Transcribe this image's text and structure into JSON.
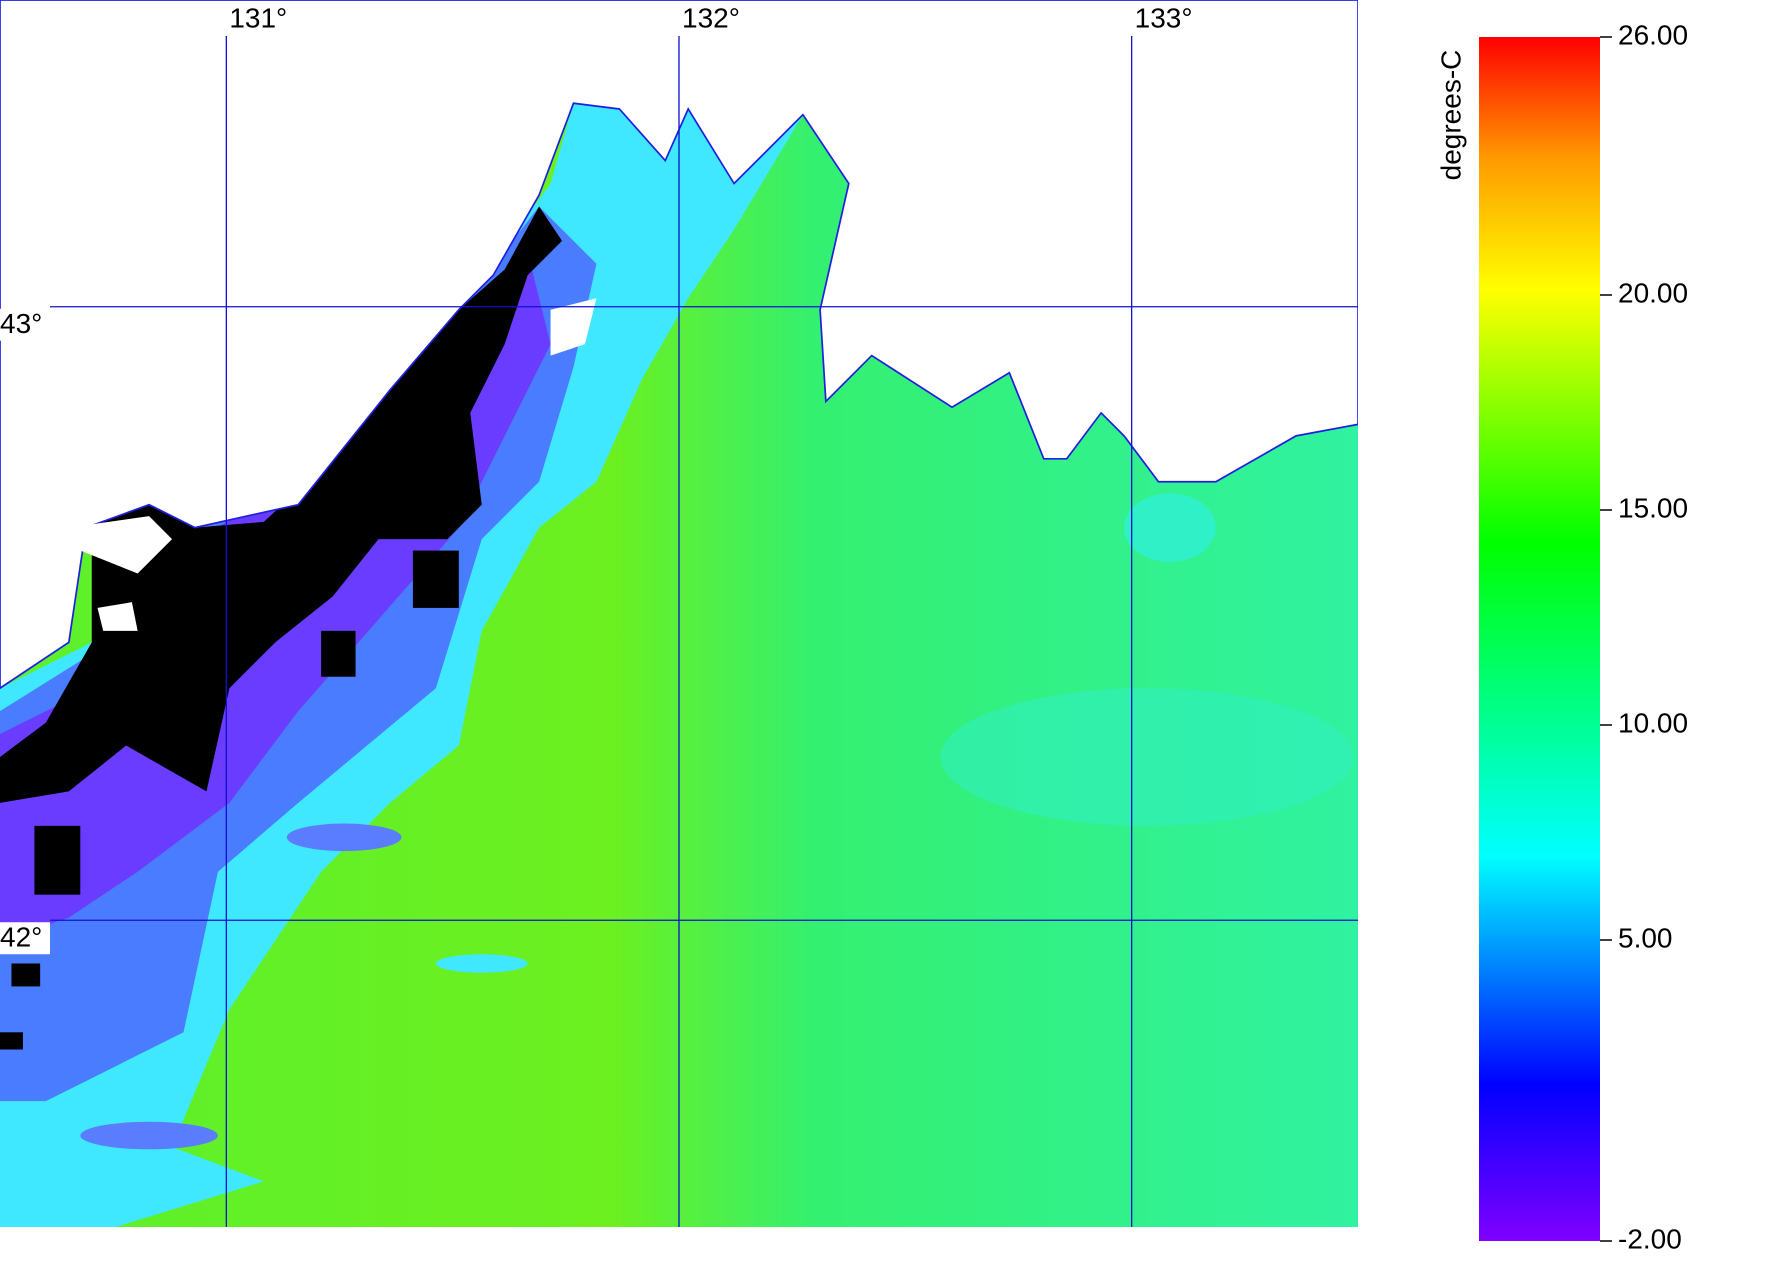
{
  "map": {
    "lonlim": [
      130.5,
      133.5
    ],
    "latlim": [
      41.5,
      43.5
    ],
    "longitudes": [
      {
        "value": 131,
        "label": "131°"
      },
      {
        "value": 132,
        "label": "132°"
      },
      {
        "value": 133,
        "label": "133°"
      }
    ],
    "latitudes": [
      {
        "value": 43,
        "label": "43°"
      },
      {
        "value": 42,
        "label": "42°"
      }
    ],
    "colorbar": {
      "title": "degrees-C",
      "lim": [
        -2,
        26
      ],
      "ticks": [
        {
          "value": 26,
          "label": "26.00"
        },
        {
          "value": 20,
          "label": "20.00"
        },
        {
          "value": 15,
          "label": "15.00"
        },
        {
          "value": 10,
          "label": "10.00"
        },
        {
          "value": 5,
          "label": "5.00"
        },
        {
          "value": -2,
          "label": "-2.00"
        }
      ]
    }
  }
}
